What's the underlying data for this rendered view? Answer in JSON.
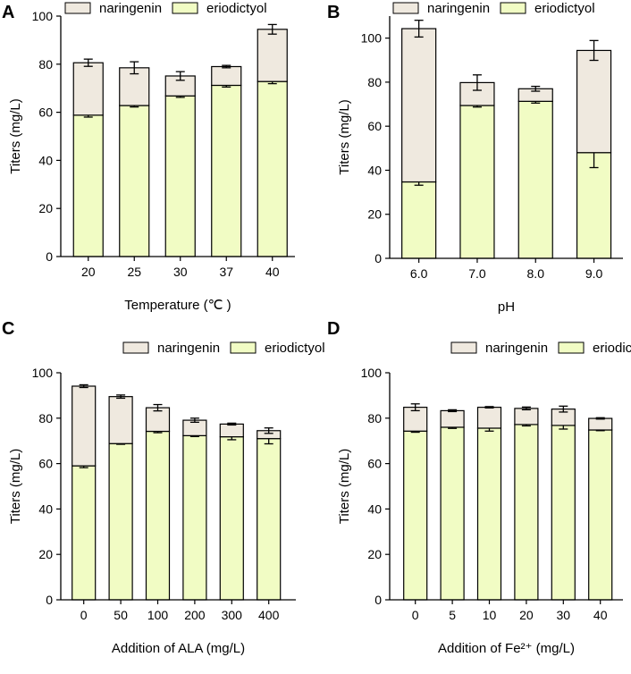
{
  "colors": {
    "naringenin": "#efe9df",
    "eriodictyol": "#f1fcc4",
    "stroke": "#000000"
  },
  "chart_data": [
    {
      "type": "bar",
      "stacked": true,
      "panel": "A",
      "title": "",
      "categories": [
        "20",
        "25",
        "30",
        "37",
        "40"
      ],
      "series": [
        {
          "name": "eriodictyol",
          "values": [
            58.8,
            62.8,
            66.8,
            71.2,
            72.8
          ],
          "errors": [
            0.8,
            0.6,
            0.6,
            0.7,
            0.9
          ]
        },
        {
          "name": "naringenin",
          "values": [
            21.8,
            15.7,
            8.3,
            7.8,
            21.7
          ],
          "errors": [
            1.5,
            2.5,
            1.8,
            0.5,
            2.0
          ]
        }
      ],
      "legend": [
        "naringenin",
        "eriodictyol"
      ],
      "xlabel": "Temperature (℃ )",
      "ylabel": "Titers (mg/L)",
      "ylim": [
        0,
        100
      ],
      "yticks": [
        0,
        20,
        40,
        60,
        80,
        100
      ]
    },
    {
      "type": "bar",
      "stacked": true,
      "panel": "B",
      "title": "",
      "categories": [
        "6.0",
        "7.0",
        "8.0",
        "9.0"
      ],
      "series": [
        {
          "name": "eriodictyol",
          "values": [
            34.7,
            69.4,
            71.3,
            48.0
          ],
          "errors": [
            1.5,
            0.7,
            0.8,
            6.8
          ]
        },
        {
          "name": "naringenin",
          "values": [
            69.6,
            10.4,
            5.7,
            46.4
          ],
          "errors": [
            3.8,
            3.5,
            1.1,
            4.5
          ]
        }
      ],
      "legend": [
        "naringenin",
        "eriodictyol"
      ],
      "xlabel": "pH",
      "ylabel": "Titers (mg/L)",
      "ylim": [
        0,
        110
      ],
      "yticks": [
        0,
        20,
        40,
        60,
        80,
        100
      ]
    },
    {
      "type": "bar",
      "stacked": true,
      "panel": "C",
      "title": "",
      "categories": [
        "0",
        "50",
        "100",
        "200",
        "300",
        "400"
      ],
      "series": [
        {
          "name": "eriodictyol",
          "values": [
            59.0,
            68.8,
            74.2,
            72.3,
            71.8,
            71.0
          ],
          "errors": [
            0.8,
            0.3,
            0.6,
            0.4,
            1.3,
            2.3
          ]
        },
        {
          "name": "naringenin",
          "values": [
            35.1,
            20.7,
            10.4,
            6.8,
            5.6,
            3.5
          ],
          "errors": [
            0.6,
            0.7,
            1.4,
            0.9,
            0.4,
            1.2
          ]
        }
      ],
      "legend": [
        "naringenin",
        "eriodictyol"
      ],
      "xlabel": "Addition of ALA (mg/L)",
      "ylabel": "Titers (mg/L)",
      "ylim": [
        0,
        100
      ],
      "yticks": [
        0,
        20,
        40,
        60,
        80,
        100
      ]
    },
    {
      "type": "bar",
      "stacked": true,
      "panel": "D",
      "title": "",
      "categories": [
        "0",
        "5",
        "10",
        "20",
        "30",
        "40"
      ],
      "series": [
        {
          "name": "eriodictyol",
          "values": [
            74.3,
            76.0,
            75.6,
            77.2,
            76.8,
            74.8
          ],
          "errors": [
            0.5,
            0.5,
            1.3,
            0.6,
            1.6,
            0.3
          ]
        },
        {
          "name": "naringenin",
          "values": [
            10.5,
            7.3,
            9.2,
            7.1,
            7.2,
            5.1
          ],
          "errors": [
            1.5,
            0.4,
            0.3,
            0.6,
            1.3,
            0.3
          ]
        }
      ],
      "legend": [
        "naringenin",
        "eriodictyol"
      ],
      "xlabel": "Addition of Fe²⁺ (mg/L)",
      "ylabel": "Titers (mg/L)",
      "ylim": [
        0,
        100
      ],
      "yticks": [
        0,
        20,
        40,
        60,
        80,
        100
      ]
    }
  ]
}
